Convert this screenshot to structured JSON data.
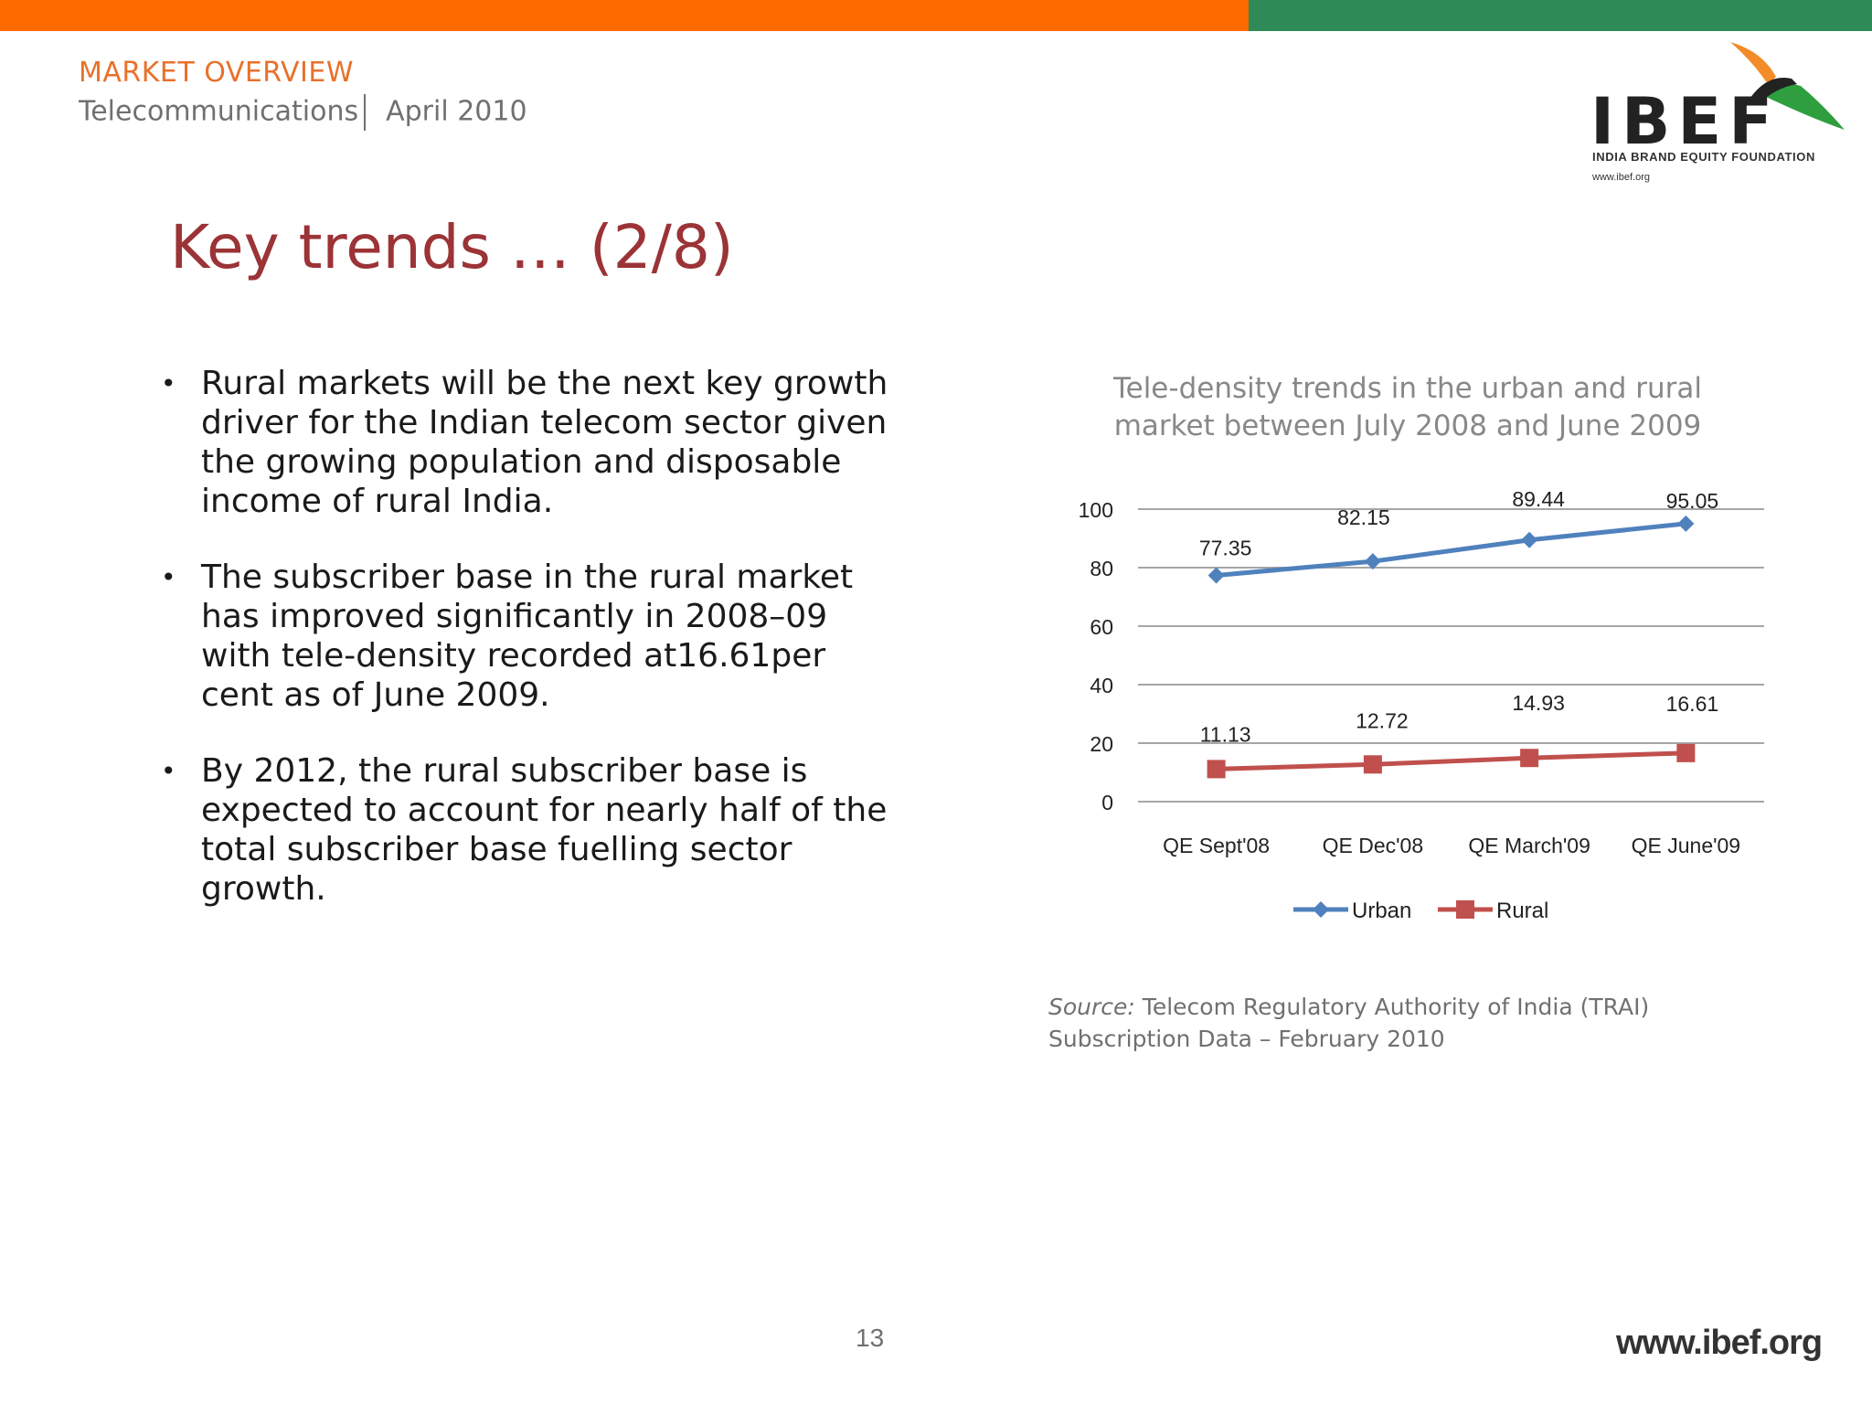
{
  "header": {
    "section": "MARKET OVERVIEW",
    "sector": "Telecommunications",
    "date": "April 2010"
  },
  "logo": {
    "name": "IBEF",
    "tagline": "INDIA BRAND EQUITY FOUNDATION",
    "url": "www.ibef.org"
  },
  "title": "Key trends … (2/8)",
  "bullets": [
    "Rural markets will be the next key growth driver for the Indian telecom sector given the growing population and disposable income of rural India.",
    "The subscriber base in the rural market has improved significantly in 2008–09 with tele-density recorded at16.61per cent as of June 2009.",
    "By 2012, the rural subscriber base is expected to account for nearly half of the total subscriber base fuelling sector growth."
  ],
  "chart_title": {
    "line1": "Tele-density trends in the urban and rural",
    "line2": "market between July 2008 and June 2009"
  },
  "chart_data": {
    "type": "line",
    "title": "Tele-density trends in the urban and rural market between July 2008 and June 2009",
    "categories": [
      "QE Sept'08",
      "QE Dec'08",
      "QE March'09",
      "QE June'09"
    ],
    "series": [
      {
        "name": "Urban",
        "values": [
          77.35,
          82.15,
          89.44,
          95.05
        ],
        "color": "#4f81bd",
        "marker": "diamond"
      },
      {
        "name": "Rural",
        "values": [
          11.13,
          12.72,
          14.93,
          16.61
        ],
        "color": "#c0504d",
        "marker": "square"
      }
    ],
    "yticks": [
      0,
      20,
      40,
      60,
      80,
      100
    ],
    "ylim": [
      0,
      100
    ],
    "grid": true,
    "legend": "bottom"
  },
  "source": {
    "label": "Source:",
    "text": "Telecom Regulatory Authority of India (TRAI) Subscription Data – February 2010"
  },
  "footer": {
    "page": "13",
    "url": "www.ibef.org"
  },
  "colors": {
    "orange": "#ff6a00",
    "green": "#2e8b57",
    "title": "#9b3337"
  }
}
